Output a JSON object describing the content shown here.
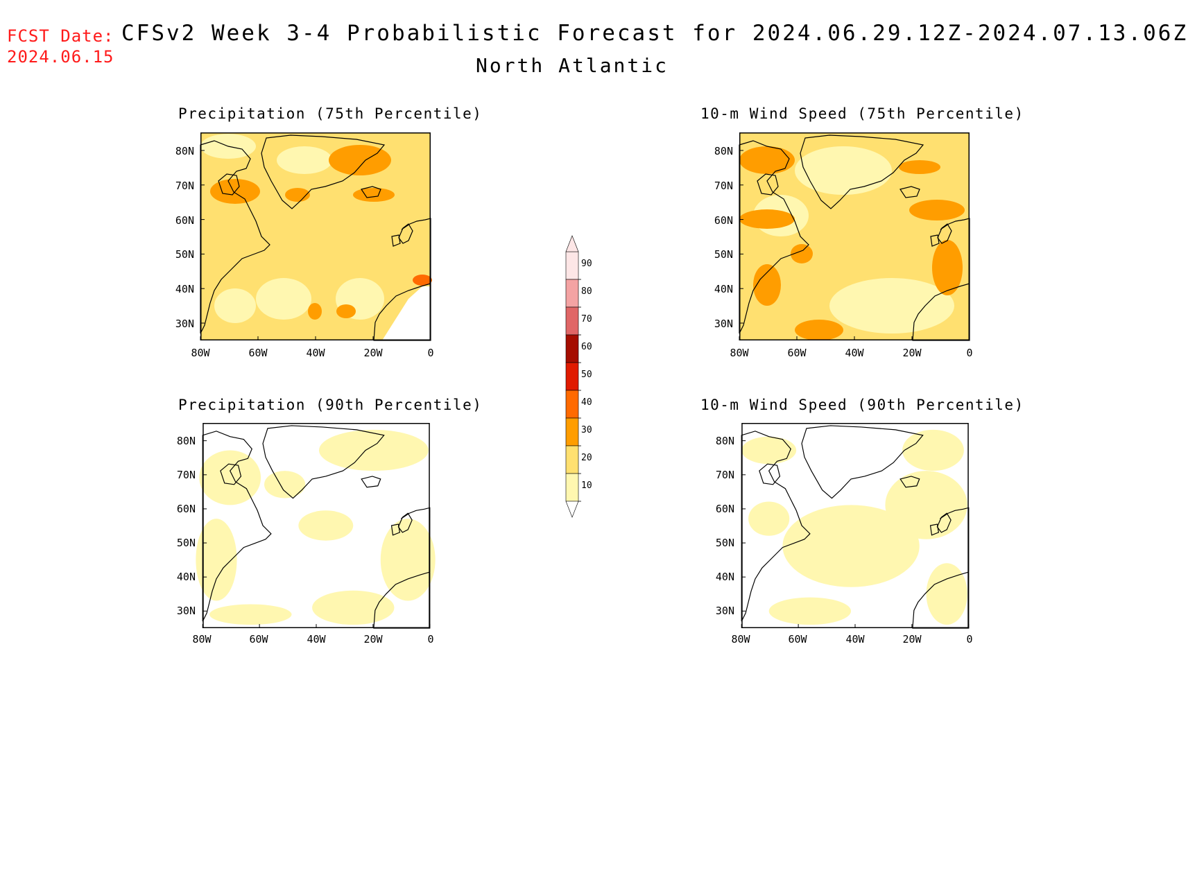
{
  "header": {
    "fcst_label": "FCST Date:",
    "fcst_date": "2024.06.15",
    "title": "CFSv2 Week 3-4 Probabilistic Forecast for 2024.06.29.12Z-2024.07.13.06Z",
    "region": "North Atlantic"
  },
  "panels": [
    {
      "title": "Precipitation (75th Percentile)",
      "dominant_class": "20-30"
    },
    {
      "title": "10-m Wind Speed (75th Percentile)",
      "dominant_class": "20-30"
    },
    {
      "title": "Precipitation (90th Percentile)",
      "dominant_class": "<10"
    },
    {
      "title": "10-m Wind Speed (90th Percentile)",
      "dominant_class": "<10"
    }
  ],
  "axes": {
    "lat_labels": [
      "80N",
      "70N",
      "60N",
      "50N",
      "40N",
      "30N"
    ],
    "lon_labels": [
      "80W",
      "60W",
      "40W",
      "20W",
      "0"
    ]
  },
  "colorbar": {
    "levels": [
      "90",
      "80",
      "70",
      "60",
      "50",
      "40",
      "30",
      "20",
      "10"
    ],
    "colors": [
      "#fde6e6",
      "#f4a3a3",
      "#e06666",
      "#a50d00",
      "#e01b00",
      "#ff6a00",
      "#ff9d00",
      "#ffe070",
      "#fff7b0"
    ]
  }
}
